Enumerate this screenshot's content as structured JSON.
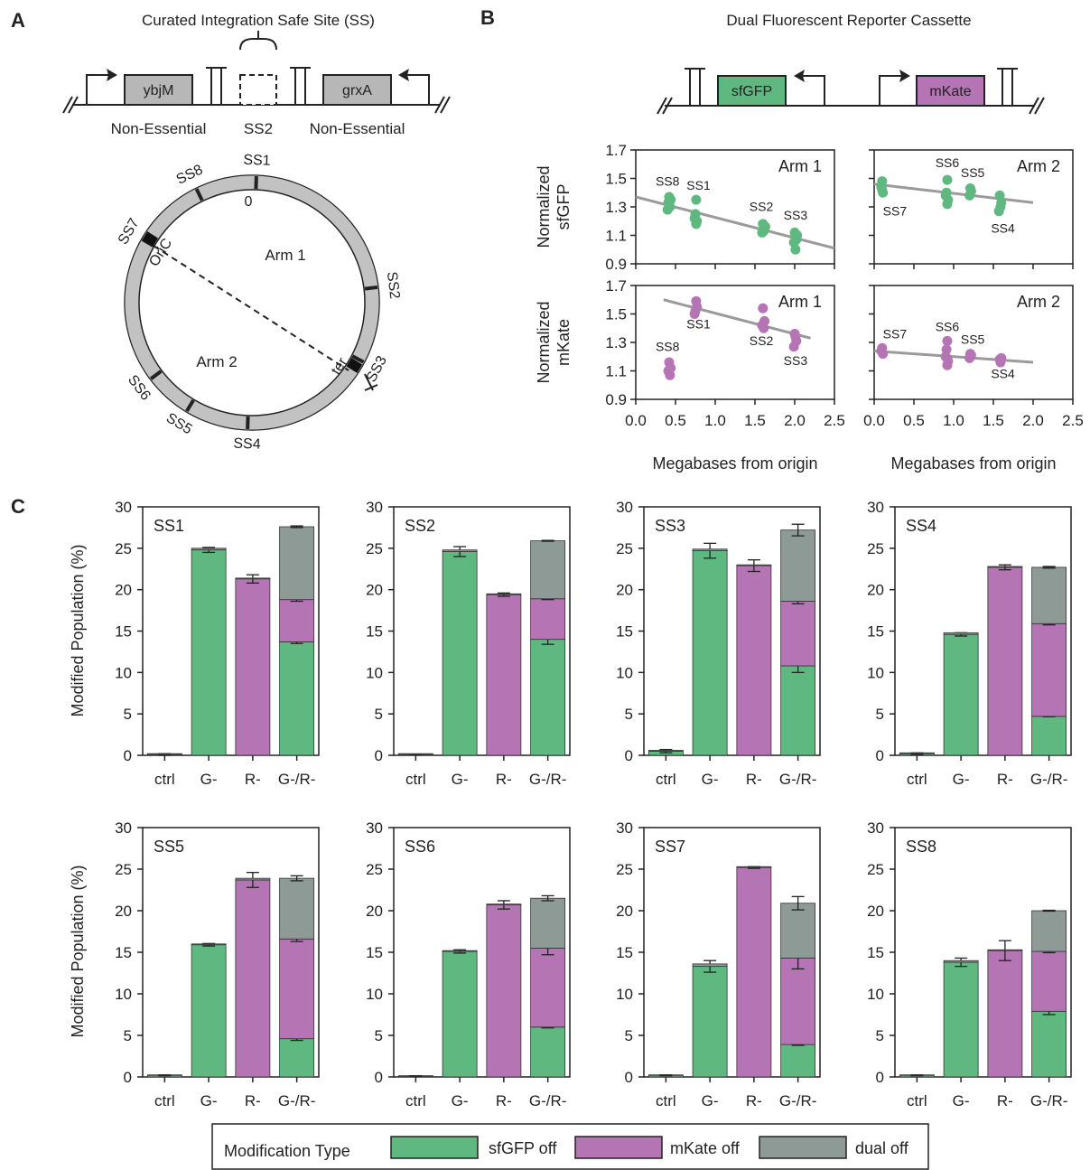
{
  "panel_labels": {
    "a": "A",
    "b": "B",
    "c": "C"
  },
  "panelA": {
    "title": "Curated Integration Safe Site (SS)",
    "gene_left": "ybjM",
    "gene_right": "grxA",
    "site": "SS2",
    "ne_left": "Non-Essential",
    "ne_right": "Non-Essential",
    "zero_label": "0",
    "oric": "OriC",
    "ter": "ter",
    "arm1": "Arm 1",
    "arm2": "Arm 2",
    "sites": [
      "SS1",
      "SS2",
      "SS3",
      "SS4",
      "SS5",
      "SS6",
      "SS7",
      "SS8"
    ]
  },
  "panelB": {
    "title": "Dual Fluorescent Reporter Cassette",
    "gene_left": "sfGFP",
    "gene_right": "mKate",
    "gfp_color": "#5fb87f",
    "mkate_color": "#b574b4",
    "line_color": "#9a9a9a",
    "ylabel_top": [
      "Normalized",
      "sfGFP"
    ],
    "ylabel_bottom": [
      "Normalized",
      "mKate"
    ],
    "xlabel": "Megabases from origin"
  },
  "scatter_titles": [
    "Arm 1",
    "Arm 2",
    "Arm 1",
    "Arm 2"
  ],
  "panelC": {
    "ylabel": "Modified Population (%)",
    "legend": {
      "title": "Modification Type",
      "items": [
        "sfGFP off",
        "mKate off",
        "dual off"
      ],
      "colors": [
        "#5fb87f",
        "#b574b4",
        "#8e9a96"
      ]
    }
  },
  "chart_data": [
    {
      "type": "scatter",
      "title": "Arm 1",
      "ylabel": "Normalized sfGFP",
      "xlabel": "",
      "xlim": [
        0,
        2.5
      ],
      "ylim": [
        0.9,
        1.7
      ],
      "yticks": [
        0.9,
        1.1,
        1.3,
        1.5,
        1.7
      ],
      "points": [
        [
          0.42,
          1.37
        ],
        [
          0.41,
          1.33
        ],
        [
          0.43,
          1.3
        ],
        [
          0.4,
          1.28
        ],
        [
          0.44,
          1.35
        ],
        [
          0.42,
          1.31
        ],
        [
          0.76,
          1.35
        ],
        [
          0.75,
          1.25
        ],
        [
          0.77,
          1.2
        ],
        [
          0.74,
          1.22
        ],
        [
          0.76,
          1.18
        ],
        [
          1.6,
          1.18
        ],
        [
          1.62,
          1.15
        ],
        [
          1.59,
          1.12
        ],
        [
          1.61,
          1.13
        ],
        [
          1.63,
          1.16
        ],
        [
          2.0,
          1.12
        ],
        [
          2.02,
          1.07
        ],
        [
          1.99,
          1.05
        ],
        [
          2.01,
          1.0
        ],
        [
          2.03,
          1.1
        ]
      ],
      "point_labels": [
        {
          "text": "SS8",
          "x": 0.4,
          "y": 1.45
        },
        {
          "text": "SS1",
          "x": 0.79,
          "y": 1.42
        },
        {
          "text": "SS2",
          "x": 1.58,
          "y": 1.27
        },
        {
          "text": "SS3",
          "x": 2.01,
          "y": 1.21
        }
      ],
      "fit": [
        [
          0.0,
          1.37
        ],
        [
          2.5,
          1.01
        ]
      ]
    },
    {
      "type": "scatter",
      "title": "Arm 2",
      "xlabel": "",
      "xlim": [
        0,
        2.5
      ],
      "ylim": [
        0.9,
        1.7
      ],
      "points": [
        [
          0.1,
          1.48
        ],
        [
          0.09,
          1.44
        ],
        [
          0.11,
          1.4
        ],
        [
          0.1,
          1.42
        ],
        [
          0.92,
          1.49
        ],
        [
          0.91,
          1.4
        ],
        [
          0.93,
          1.35
        ],
        [
          0.9,
          1.38
        ],
        [
          0.92,
          1.32
        ],
        [
          1.21,
          1.43
        ],
        [
          1.2,
          1.38
        ],
        [
          1.22,
          1.41
        ],
        [
          1.58,
          1.38
        ],
        [
          1.59,
          1.3
        ],
        [
          1.57,
          1.27
        ],
        [
          1.6,
          1.33
        ]
      ],
      "point_labels": [
        {
          "text": "SS7",
          "x": 0.26,
          "y": 1.24
        },
        {
          "text": "SS6",
          "x": 0.92,
          "y": 1.58
        },
        {
          "text": "SS5",
          "x": 1.24,
          "y": 1.51
        },
        {
          "text": "SS4",
          "x": 1.62,
          "y": 1.12
        }
      ],
      "fit": [
        [
          0.0,
          1.46
        ],
        [
          2.0,
          1.33
        ]
      ]
    },
    {
      "type": "scatter",
      "title": "Arm 1",
      "ylabel": "Normalized mKate",
      "xlabel": "Megabases from origin",
      "xlim": [
        0,
        2.5
      ],
      "ylim": [
        0.9,
        1.7
      ],
      "xticks": [
        0.0,
        0.5,
        1.0,
        1.5,
        2.0,
        2.5
      ],
      "points": [
        [
          0.42,
          1.16
        ],
        [
          0.41,
          1.1
        ],
        [
          0.43,
          1.07
        ],
        [
          0.44,
          1.12
        ],
        [
          0.76,
          1.59
        ],
        [
          0.75,
          1.52
        ],
        [
          0.77,
          1.55
        ],
        [
          0.74,
          1.5
        ],
        [
          1.6,
          1.54
        ],
        [
          1.62,
          1.45
        ],
        [
          1.59,
          1.42
        ],
        [
          1.61,
          1.4
        ],
        [
          2.0,
          1.36
        ],
        [
          2.02,
          1.31
        ],
        [
          1.99,
          1.27
        ],
        [
          2.01,
          1.34
        ]
      ],
      "point_labels": [
        {
          "text": "SS8",
          "x": 0.4,
          "y": 1.24
        },
        {
          "text": "SS1",
          "x": 0.79,
          "y": 1.4
        },
        {
          "text": "SS2",
          "x": 1.58,
          "y": 1.28
        },
        {
          "text": "SS3",
          "x": 2.01,
          "y": 1.14
        }
      ],
      "fit": [
        [
          0.35,
          1.6
        ],
        [
          2.2,
          1.33
        ]
      ]
    },
    {
      "type": "scatter",
      "title": "Arm 2",
      "xlabel": "Megabases from origin",
      "xlim": [
        0,
        2.5
      ],
      "ylim": [
        0.9,
        1.7
      ],
      "xticks": [
        0.0,
        0.5,
        1.0,
        1.5,
        2.0,
        2.5
      ],
      "points": [
        [
          0.1,
          1.26
        ],
        [
          0.09,
          1.24
        ],
        [
          0.11,
          1.22
        ],
        [
          0.92,
          1.31
        ],
        [
          0.91,
          1.25
        ],
        [
          0.93,
          1.17
        ],
        [
          0.9,
          1.2
        ],
        [
          0.92,
          1.14
        ],
        [
          1.21,
          1.22
        ],
        [
          1.2,
          1.19
        ],
        [
          1.22,
          1.21
        ],
        [
          1.58,
          1.18
        ],
        [
          1.59,
          1.16
        ],
        [
          1.6,
          1.19
        ]
      ],
      "point_labels": [
        {
          "text": "SS7",
          "x": 0.26,
          "y": 1.33
        },
        {
          "text": "SS6",
          "x": 0.92,
          "y": 1.38
        },
        {
          "text": "SS5",
          "x": 1.24,
          "y": 1.29
        },
        {
          "text": "SS4",
          "x": 1.62,
          "y": 1.05
        }
      ],
      "fit": [
        [
          0.0,
          1.24
        ],
        [
          2.0,
          1.16
        ]
      ]
    },
    {
      "type": "bar",
      "title": "SS1",
      "ylim": [
        0,
        30
      ],
      "categories": [
        "ctrl",
        "G-",
        "R-",
        "G-/R-"
      ],
      "series": [
        {
          "name": "sfGFP off",
          "values": [
            0.1,
            24.8,
            0,
            13.7
          ]
        },
        {
          "name": "mKate off",
          "values": [
            0,
            0,
            21.3,
            5.1
          ]
        },
        {
          "name": "dual off",
          "values": [
            0.1,
            0.2,
            0.1,
            8.8
          ]
        }
      ],
      "errors": [
        [
          0.1,
          0.3,
          0.5,
          0.2
        ],
        [
          0,
          0,
          0.5,
          0.2
        ],
        [
          0,
          0,
          0,
          0.1
        ]
      ]
    },
    {
      "type": "bar",
      "title": "SS2",
      "ylim": [
        0,
        30
      ],
      "categories": [
        "ctrl",
        "G-",
        "R-",
        "G-/R-"
      ],
      "series": [
        {
          "name": "sfGFP off",
          "values": [
            0.1,
            24.6,
            0,
            14.0
          ]
        },
        {
          "name": "mKate off",
          "values": [
            0,
            0,
            19.4,
            4.9
          ]
        },
        {
          "name": "dual off",
          "values": [
            0.1,
            0.2,
            0.1,
            7.0
          ]
        }
      ],
      "errors": [
        [
          0.05,
          0.6,
          0.2,
          0.6
        ],
        [
          0,
          0,
          0.2,
          0.1
        ],
        [
          0,
          0,
          0,
          0.05
        ]
      ]
    },
    {
      "type": "bar",
      "title": "SS3",
      "ylim": [
        0,
        30
      ],
      "categories": [
        "ctrl",
        "G-",
        "R-",
        "G-/R-"
      ],
      "series": [
        {
          "name": "sfGFP off",
          "values": [
            0.5,
            24.7,
            0,
            10.8
          ]
        },
        {
          "name": "mKate off",
          "values": [
            0,
            0,
            22.9,
            7.8
          ]
        },
        {
          "name": "dual off",
          "values": [
            0.1,
            0.2,
            0.1,
            8.6
          ]
        }
      ],
      "errors": [
        [
          0.2,
          0.9,
          0.7,
          0.8
        ],
        [
          0,
          0,
          0.7,
          0.3
        ],
        [
          0,
          0,
          0,
          0.7
        ]
      ]
    },
    {
      "type": "bar",
      "title": "SS4",
      "ylim": [
        0,
        30
      ],
      "categories": [
        "ctrl",
        "G-",
        "R-",
        "G-/R-"
      ],
      "series": [
        {
          "name": "sfGFP off",
          "values": [
            0.2,
            14.6,
            0,
            4.7
          ]
        },
        {
          "name": "mKate off",
          "values": [
            0,
            0,
            22.7,
            11.2
          ]
        },
        {
          "name": "dual off",
          "values": [
            0.1,
            0.2,
            0.1,
            6.8
          ]
        }
      ],
      "errors": [
        [
          0.1,
          0.2,
          0.3,
          0.05
        ],
        [
          0,
          0,
          0.3,
          0.15
        ],
        [
          0,
          0,
          0,
          0.1
        ]
      ]
    },
    {
      "type": "bar",
      "title": "SS5",
      "ylim": [
        0,
        30
      ],
      "categories": [
        "ctrl",
        "G-",
        "R-",
        "G-/R-"
      ],
      "series": [
        {
          "name": "sfGFP off",
          "values": [
            0.2,
            15.9,
            0,
            4.6
          ]
        },
        {
          "name": "mKate off",
          "values": [
            0,
            0,
            23.7,
            12.0
          ]
        },
        {
          "name": "dual off",
          "values": [
            0.05,
            0.1,
            0.2,
            7.3
          ]
        }
      ],
      "errors": [
        [
          0.05,
          0.15,
          0.9,
          0.2
        ],
        [
          0,
          0,
          0.9,
          0.3
        ],
        [
          0,
          0,
          0,
          0.3
        ]
      ]
    },
    {
      "type": "bar",
      "title": "SS6",
      "ylim": [
        0,
        30
      ],
      "categories": [
        "ctrl",
        "G-",
        "R-",
        "G-/R-"
      ],
      "series": [
        {
          "name": "sfGFP off",
          "values": [
            0.1,
            15.1,
            0,
            6.0
          ]
        },
        {
          "name": "mKate off",
          "values": [
            0,
            0,
            20.7,
            9.5
          ]
        },
        {
          "name": "dual off",
          "values": [
            0.05,
            0.1,
            0.1,
            6.0
          ]
        }
      ],
      "errors": [
        [
          0.05,
          0.2,
          0.5,
          0.1
        ],
        [
          0,
          0,
          0.5,
          0.8
        ],
        [
          0,
          0,
          0,
          0.3
        ]
      ]
    },
    {
      "type": "bar",
      "title": "SS7",
      "ylim": [
        0,
        30
      ],
      "categories": [
        "ctrl",
        "G-",
        "R-",
        "G-/R-"
      ],
      "series": [
        {
          "name": "sfGFP off",
          "values": [
            0.2,
            13.3,
            0,
            3.9
          ]
        },
        {
          "name": "mKate off",
          "values": [
            0,
            0,
            25.2,
            10.4
          ]
        },
        {
          "name": "dual off",
          "values": [
            0.05,
            0.3,
            0.1,
            6.6
          ]
        }
      ],
      "errors": [
        [
          0.05,
          0.7,
          0.1,
          0.1
        ],
        [
          0,
          0,
          0.1,
          1.3
        ],
        [
          0,
          0,
          0,
          0.8
        ]
      ]
    },
    {
      "type": "bar",
      "title": "SS8",
      "ylim": [
        0,
        30
      ],
      "categories": [
        "ctrl",
        "G-",
        "R-",
        "G-/R-"
      ],
      "series": [
        {
          "name": "sfGFP off",
          "values": [
            0.2,
            13.8,
            0,
            7.9
          ]
        },
        {
          "name": "mKate off",
          "values": [
            0,
            0,
            15.2,
            7.2
          ]
        },
        {
          "name": "dual off",
          "values": [
            0.05,
            0.2,
            0.1,
            4.9
          ]
        }
      ],
      "errors": [
        [
          0.05,
          0.5,
          1.2,
          0.4
        ],
        [
          0,
          0,
          1.2,
          0.15
        ],
        [
          0,
          0,
          0,
          0.05
        ]
      ]
    }
  ]
}
